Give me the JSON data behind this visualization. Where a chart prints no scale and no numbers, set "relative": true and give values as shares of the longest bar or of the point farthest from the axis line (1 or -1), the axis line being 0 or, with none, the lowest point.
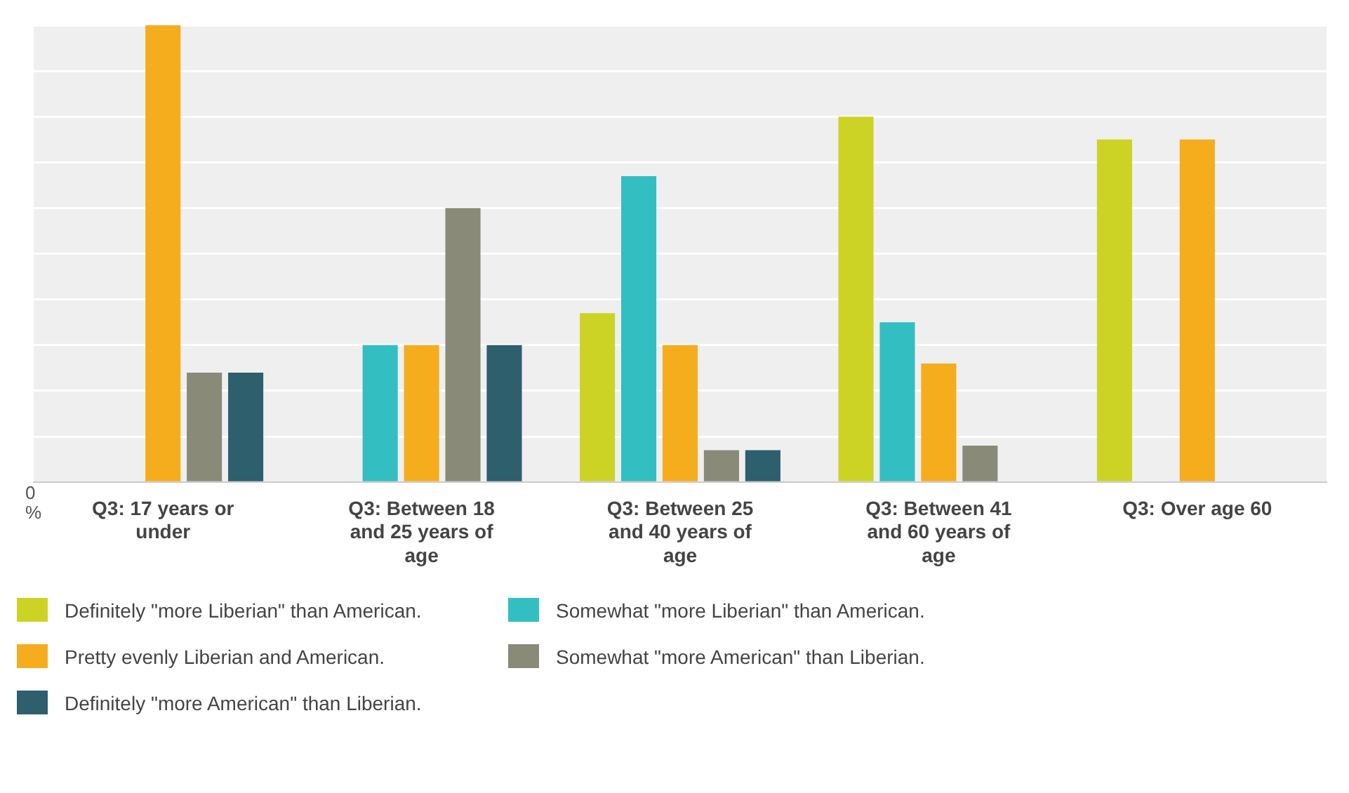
{
  "chart_data": {
    "type": "bar",
    "relative": true,
    "grid": "y",
    "legend": "bottom",
    "ylabel": "%",
    "annotations": [
      "0"
    ],
    "categories": [
      "Q3: 17 years or under",
      "Q3: Between 18 and 25 years of age",
      "Q3: Between 25 and 40 years of age",
      "Q3: Between 41 and 60 years of age",
      "Q3: Over age 60"
    ],
    "series": [
      {
        "name": "Definitely \"more Liberian\" than American.",
        "color": "#cdd325",
        "values": [
          null,
          null,
          0.37,
          0.8,
          0.75
        ]
      },
      {
        "name": "Somewhat \"more Liberian\" than American.",
        "color": "#33bec2",
        "values": [
          null,
          0.3,
          0.67,
          0.35,
          null
        ]
      },
      {
        "name": "Pretty evenly Liberian and American.",
        "color": "#f5ad1e",
        "values": [
          1,
          0.3,
          0.3,
          0.26,
          0.75
        ]
      },
      {
        "name": "Somewhat \"more American\" than Liberian.",
        "color": "#8a8a78",
        "values": [
          0.24,
          0.6,
          0.07,
          0.08,
          null
        ]
      },
      {
        "name": "Definitely \"more American\" than Liberian.",
        "color": "#2d5f6c",
        "values": [
          0.24,
          0.3,
          0.07,
          null,
          null
        ]
      }
    ]
  }
}
